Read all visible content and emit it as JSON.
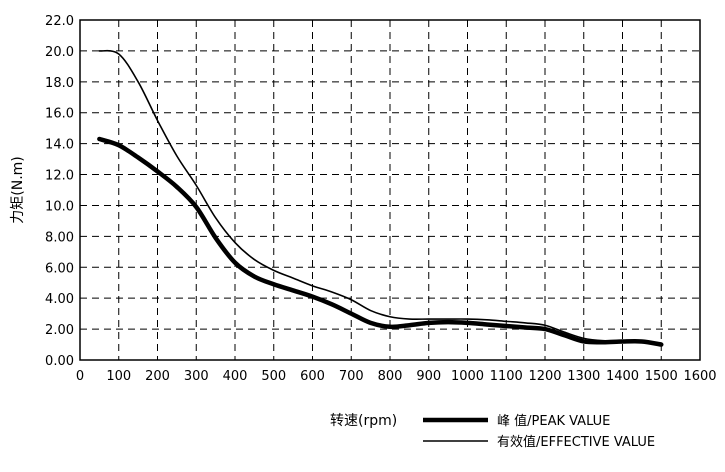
{
  "chart_data": {
    "type": "line",
    "title": "",
    "xlabel": "转速(rpm)",
    "ylabel": "力矩(N.m)",
    "xlim": [
      0,
      1600
    ],
    "ylim": [
      0,
      22
    ],
    "x_ticks": [
      "0",
      "100",
      "200",
      "300",
      "400",
      "500",
      "600",
      "700",
      "800",
      "900",
      "1000",
      "1100",
      "1200",
      "1300",
      "1400",
      "1500",
      "1600"
    ],
    "y_ticks": [
      "0.00",
      "2.00",
      "4.00",
      "6.00",
      "8.00",
      "10.0",
      "12.0",
      "14.0",
      "16.0",
      "18.0",
      "20.0",
      "22.0"
    ],
    "grid": true,
    "legend_position": "bottom-right",
    "series": [
      {
        "name": "峰 值/PEAK VALUE",
        "style": "thick",
        "color": "#000000",
        "x": [
          50,
          100,
          150,
          200,
          250,
          300,
          350,
          400,
          450,
          500,
          550,
          600,
          650,
          700,
          750,
          800,
          850,
          900,
          950,
          1000,
          1050,
          1100,
          1150,
          1200,
          1250,
          1300,
          1350,
          1400,
          1450,
          1500
        ],
        "y": [
          14.3,
          13.9,
          13.1,
          12.2,
          11.2,
          9.9,
          7.9,
          6.3,
          5.4,
          4.9,
          4.5,
          4.1,
          3.6,
          3.0,
          2.4,
          2.15,
          2.25,
          2.4,
          2.45,
          2.4,
          2.3,
          2.2,
          2.1,
          2.0,
          1.6,
          1.2,
          1.15,
          1.2,
          1.2,
          1.0
        ]
      },
      {
        "name": "有效值/EFFECTIVE VALUE",
        "style": "thin",
        "color": "#000000",
        "x": [
          50,
          100,
          150,
          200,
          250,
          300,
          350,
          400,
          450,
          500,
          550,
          600,
          650,
          700,
          750,
          800,
          850,
          900,
          950,
          1000,
          1050,
          1100,
          1150,
          1200,
          1250,
          1300,
          1350,
          1400,
          1450,
          1500
        ],
        "y": [
          20.0,
          19.8,
          18.0,
          15.5,
          13.2,
          11.3,
          9.2,
          7.6,
          6.5,
          5.8,
          5.3,
          4.8,
          4.4,
          3.9,
          3.2,
          2.8,
          2.65,
          2.65,
          2.65,
          2.65,
          2.6,
          2.5,
          2.4,
          2.25,
          1.8,
          1.4,
          1.25,
          1.25,
          1.15,
          1.1
        ]
      }
    ]
  }
}
